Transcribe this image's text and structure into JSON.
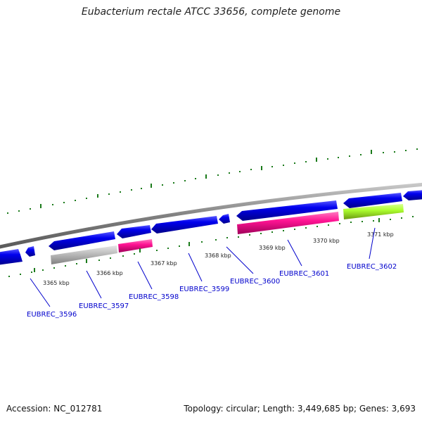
{
  "title": "Eubacterium rectale ATCC 33656, complete genome",
  "footer": {
    "accession": "Accession: NC_012781",
    "summary": "Topology: circular; Length: 3,449,685 bp; Genes: 3,693"
  },
  "tick_labels": [
    "3365 kbp",
    "3366 kbp",
    "3367 kbp",
    "3368 kbp",
    "3369 kbp",
    "3370 kbp",
    "3371 kbp"
  ],
  "genes": [
    {
      "locus": "EUBREC_3596"
    },
    {
      "locus": "EUBREC_3597"
    },
    {
      "locus": "EUBREC_3598"
    },
    {
      "locus": "EUBREC_3599"
    },
    {
      "locus": "EUBREC_3600"
    },
    {
      "locus": "EUBREC_3601"
    },
    {
      "locus": "EUBREC_3602"
    }
  ],
  "colors": {
    "backbone": "#808080",
    "forward_gene": "#0000ee",
    "reverse_gene": "#ff1493",
    "pseudo_gene": "#c0c0c0",
    "rna_gene": "#adff2f",
    "tick": "#1a7a1a",
    "locus_label": "#0000cc"
  }
}
